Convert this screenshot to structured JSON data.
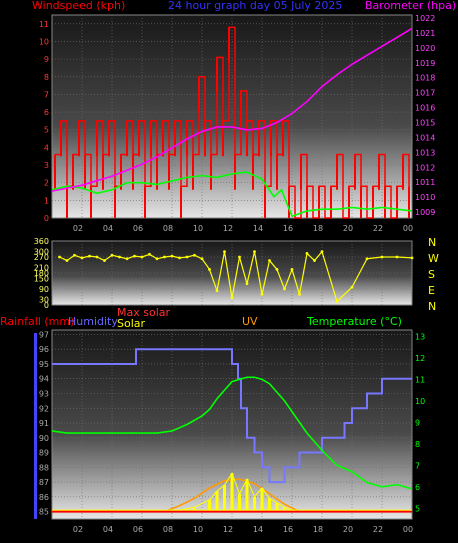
{
  "header": {
    "windspeed_label": "Windspeed (kph)",
    "title": "24 hour graph day   05 July 2025",
    "barometer_label": "Barometer (hpa)"
  },
  "panel3_header": {
    "rainfall_label": "Rainfall (mm)",
    "humidity_label": "Humidity",
    "max_solar_label": "Max solar",
    "solar_label": "Solar",
    "uv_label": "UV",
    "temperature_label": "Temperature (°C)"
  },
  "x_tick_labels": [
    "02",
    "04",
    "06",
    "08",
    "10",
    "12",
    "14",
    "16",
    "18",
    "20",
    "22",
    "00"
  ],
  "compass_labels": [
    "N",
    "W",
    "S",
    "E",
    "N"
  ],
  "colors": {
    "wind": "#ff0000",
    "gust": "#ff0000",
    "avg_wind": "#00ff00",
    "barometer": "#ff00ff",
    "direction": "#ffff00",
    "humidity": "#7777ff",
    "temperature": "#00ff00",
    "solar": "#ffff00",
    "max_solar": "#ff9900",
    "rain": "#ff0000",
    "uv": "#ffff00"
  },
  "chart_data": [
    {
      "type": "line",
      "title": "24 hour graph day   05 July 2025",
      "x_unit": "hour",
      "xlim": [
        0,
        24
      ],
      "left_axis": {
        "label": "Windspeed (kph)",
        "ylim": [
          0,
          11.5
        ],
        "ticks": [
          0,
          1,
          2,
          3,
          4,
          5,
          6,
          7,
          8,
          9,
          10,
          11
        ]
      },
      "right_axis": {
        "label": "Barometer (hpa)",
        "ylim": [
          1008.6,
          1022.2
        ],
        "ticks": [
          1009,
          1010,
          1011,
          1012,
          1013,
          1014,
          1015,
          1016,
          1017,
          1018,
          1019,
          1020,
          1021,
          1022
        ]
      },
      "series": [
        {
          "name": "Windspeed (kph)",
          "axis": "left",
          "x": [
            0.2,
            0.6,
            1.0,
            1.4,
            1.8,
            2.2,
            2.6,
            3.0,
            3.4,
            3.8,
            4.2,
            4.6,
            5.0,
            5.4,
            5.8,
            6.2,
            6.6,
            7.0,
            7.4,
            7.8,
            8.2,
            8.6,
            9.0,
            9.4,
            9.8,
            10.2,
            10.6,
            11.0,
            11.4,
            11.8,
            12.2,
            12.6,
            13.0,
            13.4,
            13.8,
            14.2,
            14.6,
            15.0,
            15.4,
            15.8,
            16.2,
            16.6,
            17.0,
            17.4,
            17.8,
            18.2,
            18.6,
            19.0,
            19.4,
            19.8,
            20.2,
            20.6,
            21.0,
            21.4,
            21.8,
            22.2,
            22.6,
            23.0,
            23.4,
            23.8
          ],
          "y": [
            3.6,
            5.5,
            1.8,
            3.6,
            5.5,
            3.6,
            1.8,
            5.5,
            3.6,
            5.5,
            1.8,
            3.6,
            5.5,
            3.6,
            5.5,
            1.8,
            5.5,
            3.6,
            5.5,
            3.6,
            5.5,
            1.8,
            5.5,
            3.6,
            8.0,
            5.5,
            3.6,
            9.1,
            5.5,
            10.8,
            3.6,
            7.2,
            5.5,
            3.6,
            5.5,
            1.8,
            5.5,
            3.6,
            5.5,
            1.8,
            0.0,
            3.6,
            1.8,
            0.0,
            1.8,
            0.0,
            1.8,
            3.6,
            0.0,
            1.8,
            3.6,
            1.8,
            0.0,
            1.8,
            3.6,
            1.8,
            0.0,
            1.8,
            3.6,
            1.8
          ]
        },
        {
          "name": "Average wind",
          "axis": "left",
          "x": [
            0.0,
            1.0,
            2.0,
            3.0,
            4.0,
            5.0,
            6.0,
            7.0,
            8.0,
            9.0,
            10.0,
            11.0,
            12.0,
            13.0,
            14.0,
            14.8,
            15.3,
            16.0,
            17.0,
            18.0,
            19.0,
            20.0,
            21.0,
            22.0,
            23.0,
            24.0
          ],
          "y": [
            1.6,
            1.8,
            1.7,
            1.4,
            1.6,
            2.0,
            2.0,
            1.9,
            2.1,
            2.3,
            2.4,
            2.3,
            2.5,
            2.6,
            2.2,
            1.2,
            1.6,
            0.1,
            0.4,
            0.5,
            0.5,
            0.6,
            0.5,
            0.6,
            0.5,
            0.4
          ]
        },
        {
          "name": "Barometer (hpa)",
          "axis": "right",
          "x": [
            0,
            1,
            2,
            3,
            4,
            5,
            6,
            7,
            8,
            9,
            10,
            11,
            12,
            13,
            14,
            15,
            16,
            17,
            18,
            19,
            20,
            21,
            22,
            23,
            24
          ],
          "y": [
            1010.4,
            1010.6,
            1010.8,
            1011.1,
            1011.4,
            1011.8,
            1012.2,
            1012.7,
            1013.3,
            1013.9,
            1014.4,
            1014.7,
            1014.7,
            1014.5,
            1014.6,
            1015.0,
            1015.6,
            1016.4,
            1017.4,
            1018.2,
            1018.9,
            1019.5,
            1020.1,
            1020.7,
            1021.3
          ]
        }
      ]
    },
    {
      "type": "scatter",
      "title": "",
      "x_unit": "hour",
      "xlim": [
        0,
        24
      ],
      "left_axis": {
        "label": "",
        "ylim": [
          0,
          360
        ],
        "ticks": [
          0,
          30,
          90,
          150,
          180,
          210,
          270,
          300,
          360
        ]
      },
      "right_axis": {
        "labels": [
          "N",
          "W",
          "S",
          "E",
          "N"
        ]
      },
      "series": [
        {
          "name": "Wind direction (°)",
          "x": [
            0.5,
            1.0,
            1.5,
            2.0,
            2.5,
            3.0,
            3.5,
            4.0,
            4.5,
            5.0,
            5.5,
            6.0,
            6.5,
            7.0,
            7.5,
            8.0,
            8.5,
            9.0,
            9.5,
            10.0,
            10.5,
            11.0,
            11.5,
            12.0,
            12.5,
            13.0,
            13.5,
            14.0,
            14.5,
            15.0,
            15.5,
            16.0,
            16.5,
            17.0,
            17.5,
            18.0,
            19.0,
            20.0,
            21.0,
            22.0,
            23.0,
            24.0
          ],
          "y": [
            270,
            250,
            280,
            265,
            275,
            270,
            250,
            280,
            270,
            260,
            275,
            270,
            285,
            260,
            270,
            275,
            265,
            270,
            280,
            260,
            200,
            80,
            300,
            40,
            270,
            120,
            300,
            60,
            250,
            200,
            90,
            200,
            60,
            290,
            250,
            300,
            20,
            100,
            260,
            270,
            270,
            265
          ]
        }
      ]
    },
    {
      "type": "line",
      "title": "",
      "x_unit": "hour",
      "xlim": [
        0,
        24
      ],
      "left_axis": {
        "label": "Humidity",
        "ylim": [
          84.5,
          97.3
        ],
        "ticks": [
          85,
          86,
          87,
          88,
          89,
          90,
          91,
          92,
          93,
          94,
          95,
          96,
          97
        ]
      },
      "right_axis": {
        "label": "Temperature (°C)",
        "ylim": [
          4.5,
          13.3
        ],
        "ticks": [
          5,
          6,
          7,
          8,
          9,
          10,
          11,
          12,
          13
        ]
      },
      "series": [
        {
          "name": "Humidity",
          "axis": "left",
          "x": [
            0,
            5.5,
            5.6,
            11.9,
            12.0,
            12.4,
            12.6,
            13.0,
            13.5,
            14.0,
            14.5,
            15.0,
            15.5,
            16.0,
            16.5,
            17.0,
            17.5,
            18.0,
            18.5,
            19.0,
            19.5,
            20.0,
            20.5,
            21.0,
            21.5,
            22.0,
            22.5,
            23.0,
            24.0
          ],
          "y": [
            95,
            95,
            96,
            96,
            95,
            94,
            92,
            90,
            89,
            88,
            87,
            87,
            88,
            88,
            89,
            89,
            89,
            90,
            90,
            90,
            91,
            92,
            92,
            93,
            93,
            94,
            94,
            94,
            94
          ]
        },
        {
          "name": "Temperature (°C)",
          "axis": "right",
          "x": [
            0,
            1,
            2,
            3,
            4,
            5,
            6,
            7,
            8,
            9,
            10,
            10.5,
            11,
            11.5,
            12,
            12.5,
            13,
            13.5,
            14,
            14.5,
            15,
            15.5,
            16,
            17,
            18,
            19,
            20,
            21,
            22,
            23,
            24
          ],
          "y": [
            8.6,
            8.5,
            8.5,
            8.5,
            8.5,
            8.5,
            8.5,
            8.5,
            8.6,
            8.9,
            9.3,
            9.6,
            10.1,
            10.5,
            10.9,
            11.0,
            11.1,
            11.1,
            11.0,
            10.8,
            10.4,
            10.0,
            9.5,
            8.5,
            7.7,
            7.0,
            6.7,
            6.2,
            6.0,
            6.1,
            5.9
          ]
        },
        {
          "name": "Solar",
          "axis": "left",
          "x": [
            7.5,
            8.5,
            9.5,
            10.5,
            11.0,
            11.5,
            12.0,
            12.5,
            13.0,
            13.5,
            14.0,
            14.5,
            15.0,
            15.5,
            16.0,
            16.5
          ],
          "y": [
            85,
            85.1,
            85.3,
            85.8,
            86.4,
            86.8,
            87.6,
            86.2,
            87.2,
            86.0,
            86.6,
            85.9,
            85.6,
            85.3,
            85.1,
            85
          ]
        },
        {
          "name": "Max solar",
          "axis": "left",
          "x": [
            7.5,
            8.5,
            9.5,
            10.5,
            11.5,
            12.5,
            13.5,
            14.5,
            15.5,
            16.5
          ],
          "y": [
            85,
            85.4,
            85.9,
            86.6,
            87.1,
            87.2,
            86.9,
            86.2,
            85.5,
            85
          ]
        },
        {
          "name": "Rainfall (mm)",
          "axis": "left",
          "x": [
            0,
            24
          ],
          "y": [
            85,
            85
          ]
        },
        {
          "name": "UV",
          "axis": "left",
          "x": [
            0,
            24
          ],
          "y": [
            85.1,
            85.1
          ]
        }
      ]
    }
  ]
}
